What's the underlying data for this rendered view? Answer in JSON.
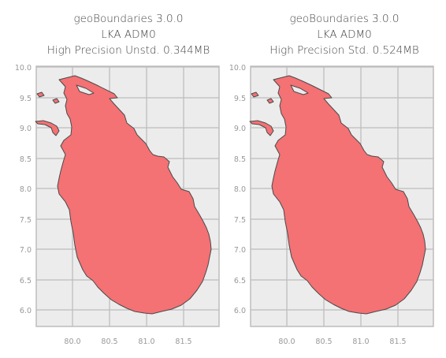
{
  "panels": [
    {
      "title_lines": [
        "geoBoundaries 3.0.0",
        "LKA ADM0",
        "High Precision Unstd. 0.344MB"
      ],
      "y_ticks": [
        "10.0",
        "9.5",
        "9.0",
        "8.5",
        "8.0",
        "7.5",
        "7.0",
        "6.5",
        "6.0"
      ],
      "x_ticks": [
        "80.0",
        "80.5",
        "81.0",
        "81.5"
      ]
    },
    {
      "title_lines": [
        "geoBoundaries 3.0.0",
        "LKA ADM0",
        "High Precision Std. 0.524MB"
      ],
      "y_ticks": [
        "10.0",
        "9.5",
        "9.0",
        "8.5",
        "8.0",
        "7.5",
        "7.0",
        "6.5",
        "6.0"
      ],
      "x_ticks": [
        "80.0",
        "80.5",
        "81.0",
        "81.5"
      ]
    }
  ],
  "colors": {
    "land_fill": "#f47174",
    "land_stroke": "#4a4a4a",
    "axes_bg": "#ececec",
    "grid": "#bdbdbd",
    "axes_border": "#bdbdbd"
  },
  "chart_data": {
    "type": "map",
    "extent": {
      "lon": [
        79.52,
        81.97
      ],
      "lat": [
        5.72,
        10.05
      ]
    },
    "y_ticks": [
      10.0,
      9.5,
      9.0,
      8.5,
      8.0,
      7.5,
      7.0,
      6.5,
      6.0
    ],
    "x_ticks": [
      80.0,
      80.5,
      81.0,
      81.5
    ],
    "grid": true
  }
}
